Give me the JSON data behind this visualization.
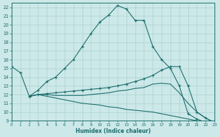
{
  "xlabel": "Humidex (Indice chaleur)",
  "bg_color": "#cce8e8",
  "grid_color": "#b0d4d4",
  "line_color": "#1a6b6b",
  "ylim": [
    9,
    22.5
  ],
  "xlim": [
    0,
    23
  ],
  "yticks": [
    9,
    10,
    11,
    12,
    13,
    14,
    15,
    16,
    17,
    18,
    19,
    20,
    21,
    22
  ],
  "xticks": [
    0,
    1,
    2,
    3,
    4,
    5,
    6,
    7,
    8,
    9,
    10,
    11,
    12,
    13,
    14,
    15,
    16,
    17,
    18,
    19,
    20,
    21,
    22,
    23
  ],
  "line1_x": [
    0,
    1,
    2,
    3,
    4,
    5,
    6,
    7,
    8,
    9,
    10,
    11,
    12,
    13,
    14,
    15,
    16,
    17,
    18,
    19,
    20,
    21,
    22,
    23
  ],
  "line1_y": [
    15.2,
    14.5,
    11.8,
    12.5,
    13.5,
    14.0,
    15.0,
    16.0,
    17.5,
    19.0,
    20.3,
    21.1,
    22.2,
    21.8,
    20.5,
    20.5,
    17.5,
    16.0,
    15.0,
    13.0,
    9.8,
    9.2,
    8.8,
    8.7
  ],
  "line2_x": [
    2,
    3,
    4,
    5,
    6,
    7,
    8,
    9,
    10,
    11,
    12,
    13,
    14,
    15,
    16,
    17,
    18,
    19,
    20,
    21,
    22,
    23
  ],
  "line2_y": [
    11.8,
    12.0,
    12.1,
    12.2,
    12.3,
    12.4,
    12.5,
    12.6,
    12.7,
    12.8,
    13.0,
    13.2,
    13.5,
    13.8,
    14.2,
    14.8,
    15.2,
    15.2,
    13.0,
    10.0,
    9.3,
    8.8
  ],
  "line3_x": [
    2,
    3,
    4,
    5,
    6,
    7,
    8,
    9,
    10,
    11,
    12,
    13,
    14,
    15,
    16,
    17,
    18,
    19,
    20,
    21,
    22,
    23
  ],
  "line3_y": [
    11.8,
    12.0,
    12.0,
    11.9,
    11.9,
    11.9,
    11.9,
    12.0,
    12.1,
    12.2,
    12.4,
    12.5,
    12.7,
    12.8,
    13.2,
    13.3,
    13.2,
    12.2,
    11.0,
    10.0,
    9.3,
    8.8
  ],
  "line4_x": [
    2,
    3,
    4,
    5,
    6,
    7,
    8,
    9,
    10,
    11,
    12,
    13,
    14,
    15,
    16,
    17,
    18,
    19,
    20,
    21,
    22,
    23
  ],
  "line4_y": [
    11.8,
    12.0,
    11.8,
    11.6,
    11.4,
    11.2,
    11.0,
    10.9,
    10.8,
    10.6,
    10.5,
    10.3,
    10.2,
    10.1,
    10.0,
    9.8,
    9.6,
    9.4,
    9.2,
    9.0,
    8.8,
    8.6
  ]
}
